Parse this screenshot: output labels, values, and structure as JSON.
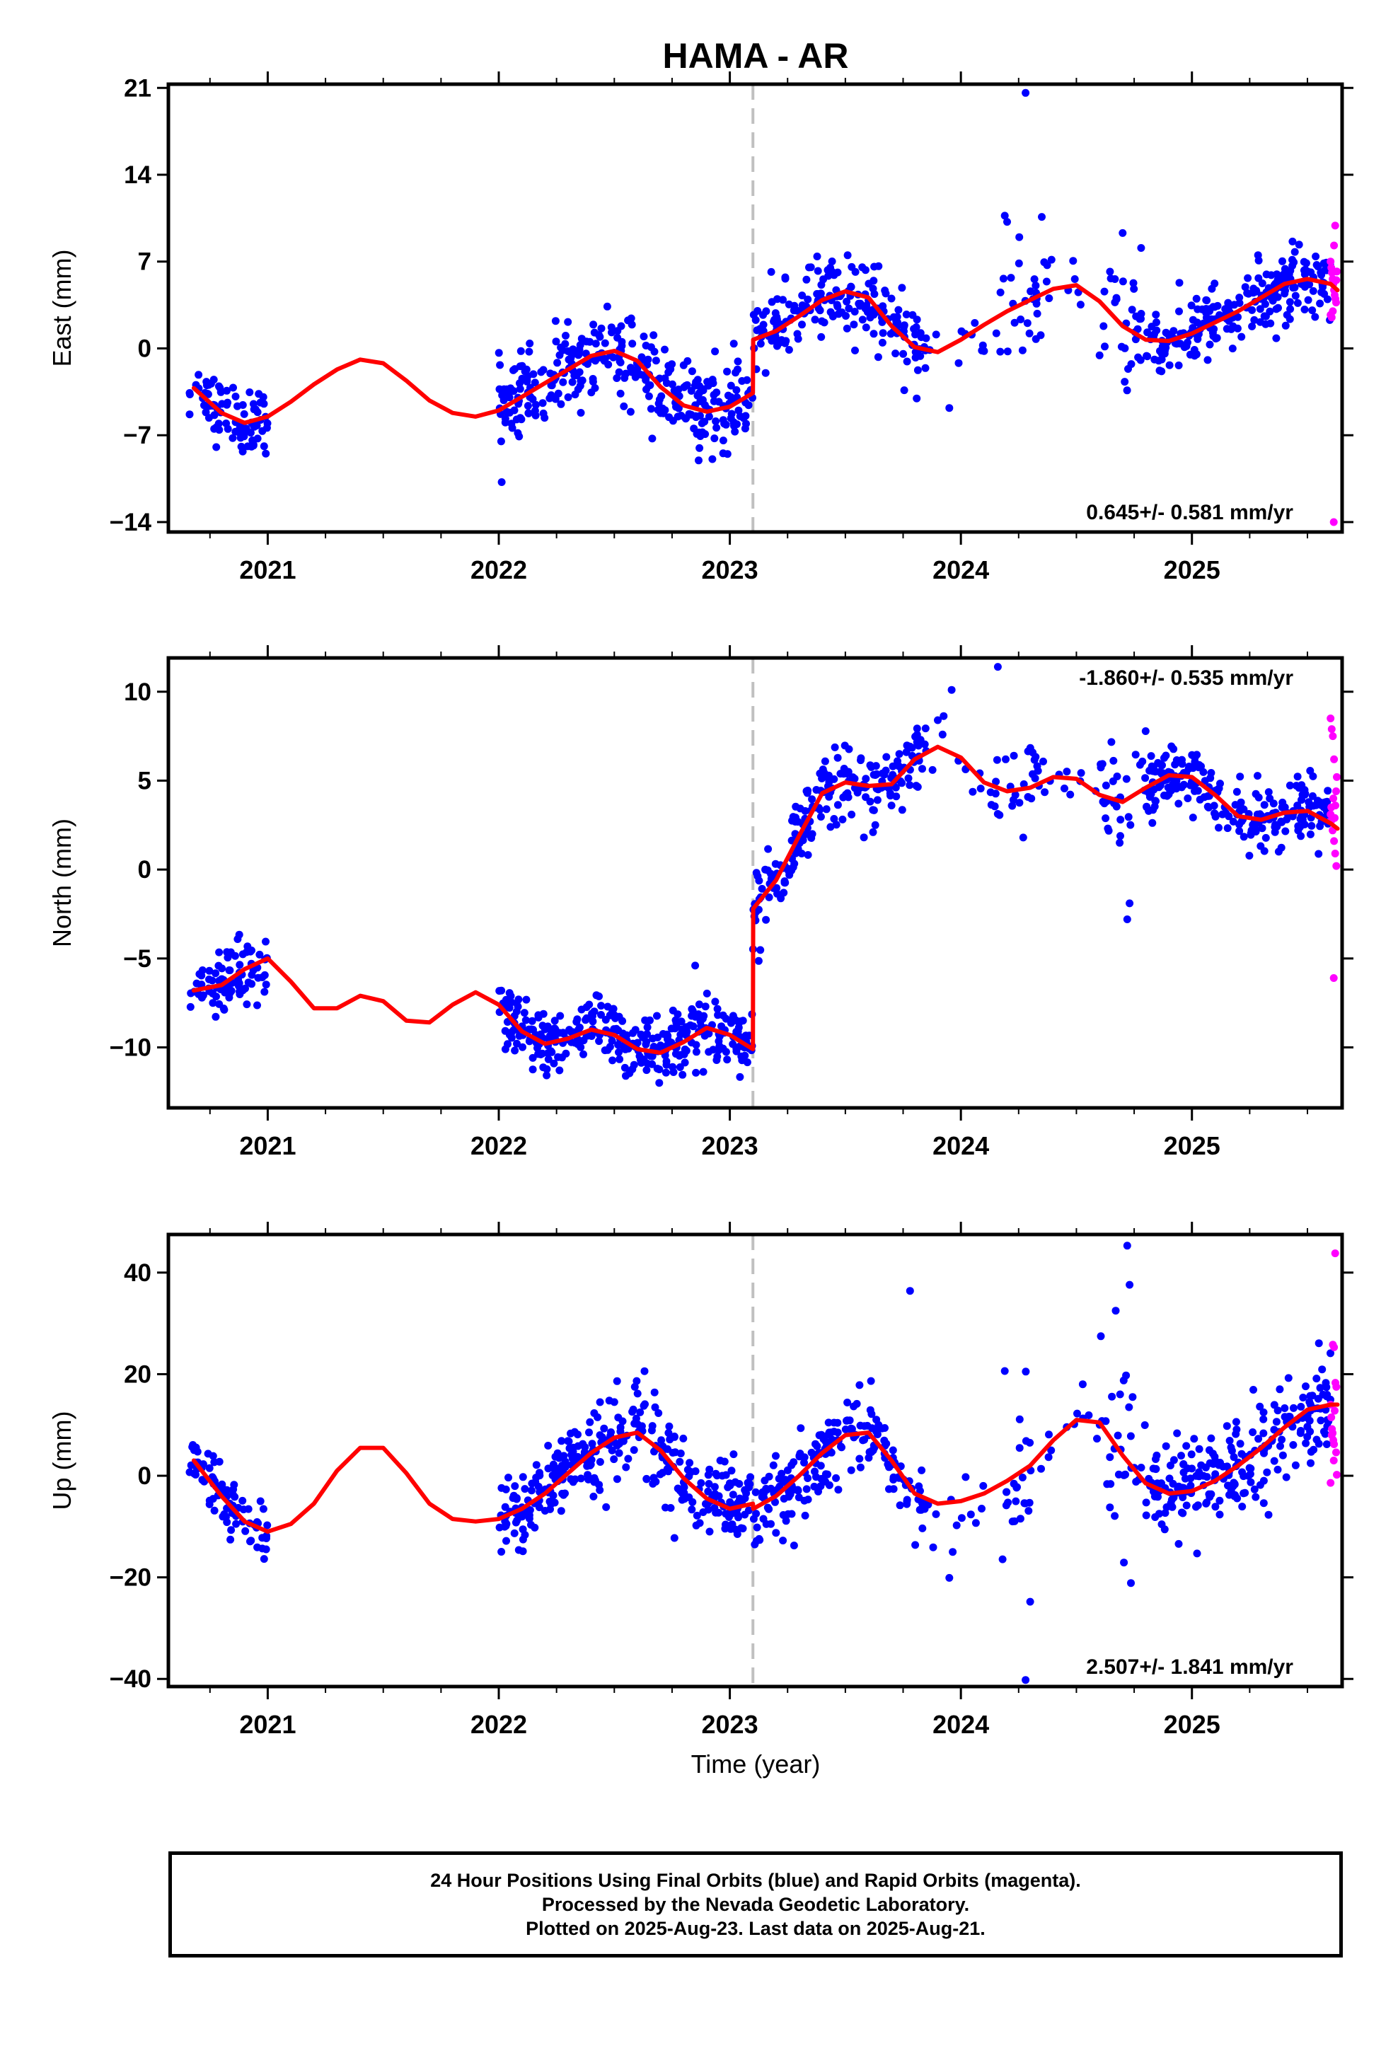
{
  "title": "HAMA - AR",
  "xlabel": "Time (year)",
  "colors": {
    "final": "#0000ff",
    "rapid": "#ff00ff",
    "model": "#ff0000",
    "offset": "#c0c0c0",
    "frame": "#000000"
  },
  "caption": [
    "24 Hour Positions Using Final Orbits (blue) and Rapid Orbits (magenta).",
    "Processed by the Nevada Geodetic Laboratory.",
    "Plotted on 2025-Aug-23. Last data on 2025-Aug-21."
  ],
  "chart_data": [
    {
      "type": "scatter",
      "component": "east",
      "ylabel": "East (mm)",
      "rate_label": "0.645+/- 0.581 mm/yr",
      "rate_position": "bottom-right",
      "xlim": [
        2020.57,
        2025.65
      ],
      "ylim": [
        -14.8,
        21.3
      ],
      "yticks": [
        21,
        14,
        7,
        0,
        -7,
        -14
      ],
      "yticklabels": [
        "21",
        "14",
        "7",
        "0",
        "−7",
        "−14"
      ],
      "xticks": [
        2021,
        2022,
        2023,
        2024,
        2025
      ],
      "xticklabels": [
        "2021",
        "2022",
        "2023",
        "2024",
        "2025"
      ],
      "offset_epoch": 2023.1,
      "model": {
        "x": [
          2020.68,
          2020.8,
          2020.9,
          2021.0,
          2021.1,
          2021.2,
          2021.3,
          2021.4,
          2021.5,
          2021.6,
          2021.7,
          2021.8,
          2021.9,
          2022.0,
          2022.1,
          2022.2,
          2022.3,
          2022.4,
          2022.5,
          2022.6,
          2022.7,
          2022.8,
          2022.9,
          2023.0,
          2023.1,
          2023.101,
          2023.2,
          2023.3,
          2023.4,
          2023.5,
          2023.6,
          2023.7,
          2023.8,
          2023.9,
          2024.0,
          2024.1,
          2024.2,
          2024.3,
          2024.4,
          2024.5,
          2024.6,
          2024.7,
          2024.8,
          2024.9,
          2025.0,
          2025.1,
          2025.2,
          2025.3,
          2025.4,
          2025.5,
          2025.6,
          2025.63
        ],
        "y": [
          -3.2,
          -5.2,
          -6.0,
          -5.5,
          -4.3,
          -2.9,
          -1.7,
          -0.9,
          -1.2,
          -2.6,
          -4.2,
          -5.2,
          -5.5,
          -5.0,
          -3.9,
          -2.8,
          -1.7,
          -0.6,
          -0.2,
          -1.0,
          -3.1,
          -4.6,
          -5.1,
          -4.7,
          -3.6,
          0.7,
          1.4,
          2.6,
          3.9,
          4.6,
          4.1,
          1.8,
          0.1,
          -0.3,
          0.7,
          1.9,
          3.0,
          3.9,
          4.8,
          5.1,
          3.8,
          1.8,
          0.7,
          0.6,
          1.2,
          2.1,
          3.0,
          4.1,
          5.2,
          5.6,
          5.2,
          4.7
        ]
      },
      "final_segments": [
        {
          "x0": 2020.66,
          "x1": 2021.0,
          "n": 85,
          "sd": 1.3
        },
        {
          "x0": 2022.0,
          "x1": 2023.1,
          "n": 320,
          "sd": 1.7
        },
        {
          "x0": 2023.1,
          "x1": 2023.85,
          "n": 200,
          "sd": 1.6
        },
        {
          "x0": 2023.85,
          "x1": 2024.15,
          "n": 10,
          "sd": 1.8
        },
        {
          "x0": 2024.15,
          "x1": 2024.35,
          "n": 25,
          "sd": 2.2
        },
        {
          "x0": 2024.35,
          "x1": 2024.6,
          "n": 10,
          "sd": 1.5
        },
        {
          "x0": 2024.6,
          "x1": 2024.8,
          "n": 30,
          "sd": 2.4
        },
        {
          "x0": 2024.8,
          "x1": 2025.6,
          "n": 230,
          "sd": 1.4
        }
      ],
      "final_extra": {
        "x": [
          2024.28,
          2024.19,
          2024.2,
          2024.35,
          2024.7,
          2024.78,
          2023.95
        ],
        "y": [
          20.6,
          10.7,
          10.2,
          10.6,
          9.3,
          8.1,
          -4.8
        ]
      },
      "rapid": {
        "x": [
          2025.6,
          2025.603,
          2025.606,
          2025.609,
          2025.612,
          2025.615,
          2025.618,
          2025.621,
          2025.624,
          2025.627,
          2025.6,
          2025.605,
          2025.61,
          2025.615,
          2025.62,
          2025.625,
          2025.614
        ],
        "y": [
          7.0,
          6.5,
          6.1,
          5.6,
          5.2,
          4.7,
          4.3,
          4.0,
          3.7,
          6.2,
          2.7,
          2.5,
          3.0,
          8.3,
          9.9,
          5.5,
          -14.0
        ]
      }
    },
    {
      "type": "scatter",
      "component": "north",
      "ylabel": "North (mm)",
      "rate_label": "-1.860+/- 0.535 mm/yr",
      "rate_position": "top-right",
      "xlim": [
        2020.57,
        2025.65
      ],
      "ylim": [
        -13.4,
        11.9
      ],
      "yticks": [
        10,
        5,
        0,
        -5,
        -10
      ],
      "yticklabels": [
        "10",
        "5",
        "0",
        "−5",
        "−10"
      ],
      "xticks": [
        2021,
        2022,
        2023,
        2024,
        2025
      ],
      "xticklabels": [
        "2021",
        "2022",
        "2023",
        "2024",
        "2025"
      ],
      "offset_epoch": 2023.1,
      "model": {
        "x": [
          2020.68,
          2020.8,
          2020.9,
          2021.0,
          2021.1,
          2021.2,
          2021.3,
          2021.4,
          2021.5,
          2021.6,
          2021.7,
          2021.8,
          2021.9,
          2022.0,
          2022.1,
          2022.2,
          2022.3,
          2022.4,
          2022.5,
          2022.6,
          2022.7,
          2022.8,
          2022.9,
          2023.0,
          2023.1,
          2023.101,
          2023.2,
          2023.3,
          2023.4,
          2023.5,
          2023.6,
          2023.7,
          2023.8,
          2023.9,
          2024.0,
          2024.1,
          2024.2,
          2024.3,
          2024.4,
          2024.5,
          2024.6,
          2024.7,
          2024.8,
          2024.9,
          2025.0,
          2025.1,
          2025.2,
          2025.3,
          2025.4,
          2025.5,
          2025.6,
          2025.63
        ],
        "y": [
          -6.8,
          -6.5,
          -5.6,
          -5.0,
          -6.3,
          -7.8,
          -7.8,
          -7.1,
          -7.4,
          -8.5,
          -8.6,
          -7.6,
          -6.9,
          -7.6,
          -9.1,
          -9.8,
          -9.5,
          -9.0,
          -9.3,
          -10.1,
          -10.3,
          -9.7,
          -8.9,
          -9.3,
          -10.1,
          -2.2,
          -0.6,
          1.9,
          4.3,
          4.9,
          4.7,
          4.8,
          6.2,
          6.9,
          6.3,
          4.9,
          4.4,
          4.6,
          5.2,
          5.1,
          4.2,
          3.8,
          4.6,
          5.3,
          5.2,
          4.2,
          3.0,
          2.8,
          3.2,
          3.3,
          2.6,
          2.3
        ]
      },
      "final_segments": [
        {
          "x0": 2020.66,
          "x1": 2021.0,
          "n": 85,
          "sd": 0.9
        },
        {
          "x0": 2022.0,
          "x1": 2023.1,
          "n": 330,
          "sd": 0.9
        },
        {
          "x0": 2023.1,
          "x1": 2023.85,
          "n": 200,
          "sd": 1.0
        },
        {
          "x0": 2023.85,
          "x1": 2024.15,
          "n": 12,
          "sd": 1.0
        },
        {
          "x0": 2024.15,
          "x1": 2024.35,
          "n": 25,
          "sd": 1.2
        },
        {
          "x0": 2024.35,
          "x1": 2024.6,
          "n": 10,
          "sd": 1.0
        },
        {
          "x0": 2024.6,
          "x1": 2024.8,
          "n": 30,
          "sd": 1.6
        },
        {
          "x0": 2024.8,
          "x1": 2025.6,
          "n": 230,
          "sd": 0.9
        }
      ],
      "final_extra": {
        "x": [
          2024.16,
          2023.96,
          2023.9,
          2024.27,
          2024.73,
          2024.72,
          2022.85
        ],
        "y": [
          11.4,
          10.1,
          8.4,
          1.8,
          -1.9,
          -2.8,
          -5.4
        ]
      },
      "rapid": {
        "x": [
          2025.6,
          2025.603,
          2025.606,
          2025.609,
          2025.612,
          2025.615,
          2025.618,
          2025.621,
          2025.624,
          2025.627,
          2025.6,
          2025.605,
          2025.61,
          2025.615,
          2025.62,
          2025.625,
          2025.614
        ],
        "y": [
          3.1,
          3.5,
          2.8,
          2.2,
          4.0,
          1.6,
          2.9,
          3.6,
          4.4,
          5.2,
          8.5,
          7.9,
          7.5,
          6.2,
          0.9,
          0.2,
          -6.1
        ]
      }
    },
    {
      "type": "scatter",
      "component": "up",
      "ylabel": "Up (mm)",
      "rate_label": "2.507+/- 1.841 mm/yr",
      "rate_position": "bottom-right",
      "xlim": [
        2020.57,
        2025.65
      ],
      "ylim": [
        -41.5,
        47.5
      ],
      "yticks": [
        40,
        20,
        0,
        -20,
        -40
      ],
      "yticklabels": [
        "40",
        "20",
        "0",
        "−20",
        "−40"
      ],
      "xticks": [
        2021,
        2022,
        2023,
        2024,
        2025
      ],
      "xticklabels": [
        "2021",
        "2022",
        "2023",
        "2024",
        "2025"
      ],
      "offset_epoch": 2023.1,
      "model": {
        "x": [
          2020.68,
          2020.8,
          2020.9,
          2021.0,
          2021.1,
          2021.2,
          2021.3,
          2021.4,
          2021.5,
          2021.6,
          2021.7,
          2021.8,
          2021.9,
          2022.0,
          2022.1,
          2022.2,
          2022.3,
          2022.4,
          2022.5,
          2022.6,
          2022.7,
          2022.8,
          2022.9,
          2023.0,
          2023.1,
          2023.101,
          2023.2,
          2023.3,
          2023.4,
          2023.5,
          2023.6,
          2023.7,
          2023.8,
          2023.9,
          2024.0,
          2024.1,
          2024.2,
          2024.3,
          2024.4,
          2024.5,
          2024.6,
          2024.7,
          2024.8,
          2024.9,
          2025.0,
          2025.1,
          2025.2,
          2025.3,
          2025.4,
          2025.5,
          2025.6,
          2025.63
        ],
        "y": [
          3.0,
          -4.0,
          -9.0,
          -11.0,
          -9.5,
          -5.5,
          1.0,
          5.5,
          5.5,
          0.5,
          -5.5,
          -8.5,
          -9.0,
          -8.5,
          -6.5,
          -3.5,
          0.5,
          4.5,
          7.5,
          8.5,
          5.0,
          -0.5,
          -4.5,
          -6.5,
          -5.5,
          -6.5,
          -4.0,
          0.0,
          4.5,
          8.0,
          8.5,
          3.0,
          -3.5,
          -5.5,
          -5.0,
          -3.5,
          -1.0,
          2.0,
          7.0,
          11.0,
          10.5,
          4.0,
          -1.5,
          -3.5,
          -3.0,
          -1.0,
          2.0,
          5.5,
          9.5,
          13.0,
          14.0,
          14.0
        ]
      },
      "final_segments": [
        {
          "x0": 2020.66,
          "x1": 2021.0,
          "n": 85,
          "sd": 3.2
        },
        {
          "x0": 2022.0,
          "x1": 2023.1,
          "n": 330,
          "sd": 4.2
        },
        {
          "x0": 2023.1,
          "x1": 2023.85,
          "n": 200,
          "sd": 3.8
        },
        {
          "x0": 2023.85,
          "x1": 2024.15,
          "n": 12,
          "sd": 6.0
        },
        {
          "x0": 2024.15,
          "x1": 2024.35,
          "n": 25,
          "sd": 8.0
        },
        {
          "x0": 2024.35,
          "x1": 2024.6,
          "n": 10,
          "sd": 5.0
        },
        {
          "x0": 2024.6,
          "x1": 2024.8,
          "n": 30,
          "sd": 10.0
        },
        {
          "x0": 2024.8,
          "x1": 2025.6,
          "n": 230,
          "sd": 4.8
        }
      ],
      "final_extra": {
        "x": [
          2024.72,
          2024.73,
          2024.67,
          2023.78,
          2024.3,
          2024.28,
          2023.95
        ],
        "y": [
          45.3,
          37.6,
          32.5,
          36.4,
          -24.8,
          -40.2,
          -20.1
        ]
      },
      "rapid": {
        "x": [
          2025.6,
          2025.603,
          2025.606,
          2025.609,
          2025.612,
          2025.615,
          2025.618,
          2025.621,
          2025.624,
          2025.627,
          2025.6,
          2025.605,
          2025.61,
          2025.615,
          2025.62,
          2025.625,
          2025.614
        ],
        "y": [
          14.0,
          11.5,
          9.2,
          8.4,
          7.0,
          6.2,
          12.8,
          18.3,
          4.6,
          0.2,
          -1.4,
          8.0,
          25.8,
          25.3,
          43.8,
          17.5,
          3.0
        ]
      }
    }
  ]
}
